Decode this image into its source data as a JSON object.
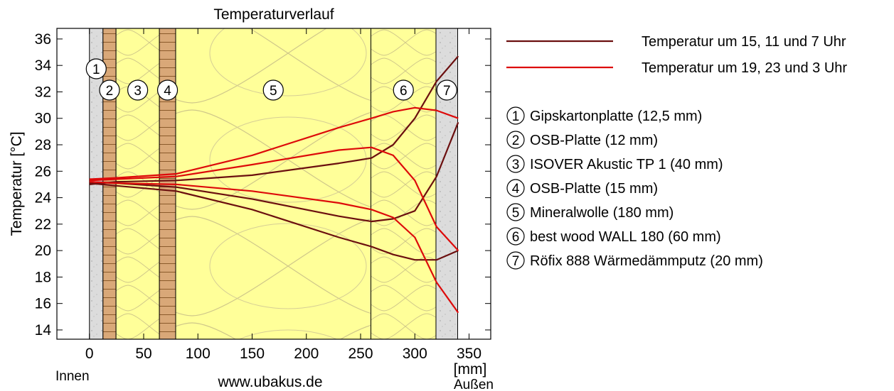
{
  "chart_data": {
    "type": "line",
    "title": "Temperaturverlauf",
    "ylabel": "Temperatur [°C]",
    "xunit": "[mm]",
    "inside_label": "Innen",
    "outside_label": "Außen",
    "source": "www.ubakus.de",
    "xlim": [
      -30,
      370
    ],
    "ylim": [
      13.3,
      36.8
    ],
    "xticks": [
      0,
      50,
      100,
      150,
      200,
      250,
      300,
      350
    ],
    "yticks": [
      14,
      16,
      18,
      20,
      22,
      24,
      26,
      28,
      30,
      32,
      34,
      36
    ],
    "grid": false,
    "layers": [
      {
        "num": "1",
        "name": "Gipskartonplatte (12,5 mm)",
        "from": 0,
        "to": 12.5,
        "material": "plaster",
        "fill": "#dcdcdc"
      },
      {
        "num": "2",
        "name": "OSB-Platte (12 mm)",
        "from": 12.5,
        "to": 24.5,
        "material": "osb",
        "fill": "#d9a878"
      },
      {
        "num": "3",
        "name": "ISOVER Akustic TP 1 (40 mm)",
        "from": 24.5,
        "to": 64.5,
        "material": "insulation",
        "fill": "#ffff99"
      },
      {
        "num": "4",
        "name": "OSB-Platte (15 mm)",
        "from": 64.5,
        "to": 79.5,
        "material": "osb",
        "fill": "#d9a878"
      },
      {
        "num": "5",
        "name": "Mineralwolle (180 mm)",
        "from": 79.5,
        "to": 259.5,
        "material": "insulation",
        "fill": "#ffff99"
      },
      {
        "num": "6",
        "name": "best wood WALL 180 (60 mm)",
        "from": 259.5,
        "to": 319.5,
        "material": "insulation",
        "fill": "#ffff99"
      },
      {
        "num": "7",
        "name": "Röfix 888 Wärmedämmputz (20 mm)",
        "from": 319.5,
        "to": 339.5,
        "material": "plaster",
        "fill": "#dcdcdc"
      }
    ],
    "series": [
      {
        "name": "Temperatur um 15, 11 und 7 Uhr",
        "color": "#6b0f0f",
        "lines": [
          {
            "x": [
              0,
              25,
              80,
              150,
              230,
              260,
              280,
              300,
              320,
              340
            ],
            "y": [
              25.0,
              25.2,
              25.3,
              25.7,
              26.6,
              27.0,
              28.0,
              30.0,
              32.8,
              34.7
            ]
          },
          {
            "x": [
              0,
              25,
              80,
              150,
              230,
              260,
              280,
              300,
              320,
              340
            ],
            "y": [
              25.2,
              25.1,
              24.8,
              23.9,
              22.6,
              22.2,
              22.4,
              23.0,
              25.6,
              29.7
            ]
          },
          {
            "x": [
              0,
              25,
              80,
              150,
              230,
              260,
              280,
              300,
              320,
              340
            ],
            "y": [
              25.1,
              24.9,
              24.5,
              23.1,
              21.0,
              20.3,
              19.7,
              19.3,
              19.3,
              20.0
            ]
          }
        ]
      },
      {
        "name": "Temperatur um 19, 23 und 3 Uhr",
        "color": "#dd0a0a",
        "lines": [
          {
            "x": [
              0,
              25,
              80,
              150,
              230,
              260,
              280,
              300,
              320,
              340
            ],
            "y": [
              25.4,
              25.5,
              25.8,
              27.2,
              29.3,
              30.0,
              30.5,
              30.8,
              30.6,
              30.0
            ]
          },
          {
            "x": [
              0,
              25,
              80,
              150,
              230,
              260,
              280,
              300,
              320,
              340
            ],
            "y": [
              25.3,
              25.4,
              25.6,
              26.5,
              27.6,
              27.8,
              27.2,
              25.3,
              21.8,
              20.0
            ]
          },
          {
            "x": [
              0,
              25,
              80,
              150,
              230,
              260,
              280,
              300,
              320,
              340
            ],
            "y": [
              25.2,
              25.1,
              25.0,
              24.5,
              23.6,
              23.1,
              22.5,
              21.0,
              17.6,
              15.3
            ]
          }
        ]
      }
    ]
  }
}
